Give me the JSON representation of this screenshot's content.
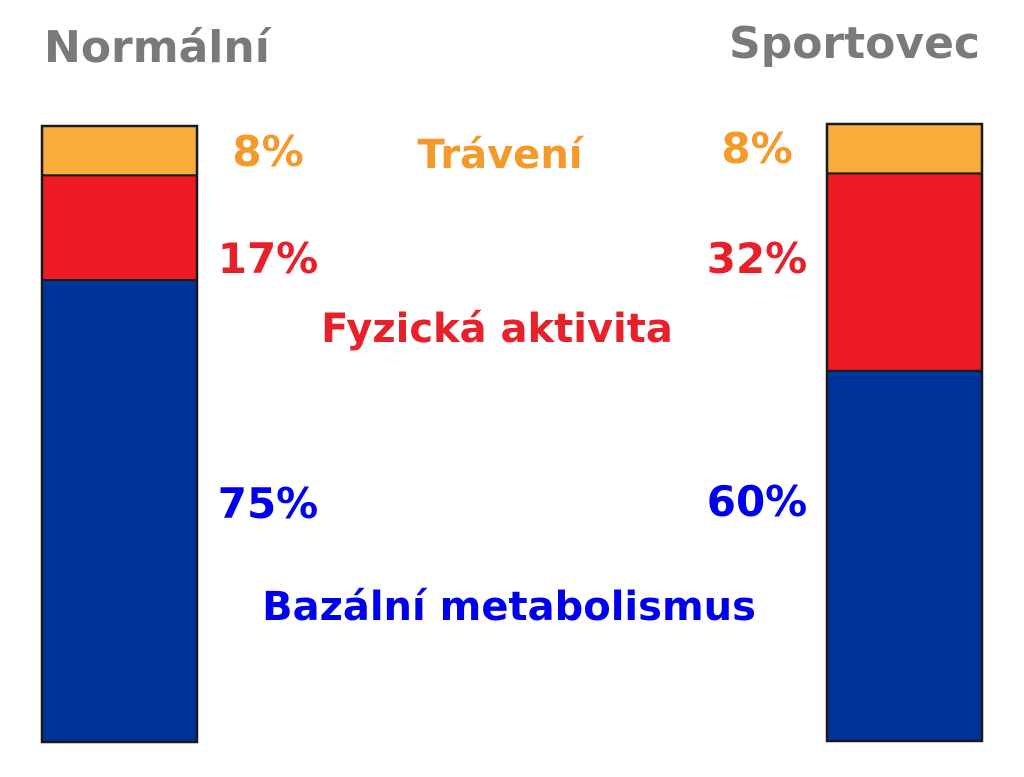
{
  "chart_data": {
    "type": "bar",
    "stacked": true,
    "categories": [
      "Normální",
      "Sportovec"
    ],
    "series": [
      {
        "name": "Bazální metabolismus",
        "values": [
          75,
          60
        ],
        "color": "#003399"
      },
      {
        "name": "Fyzická aktivita",
        "values": [
          17,
          32
        ],
        "color": "#ed1c24"
      },
      {
        "name": "Trávení",
        "values": [
          8,
          8
        ],
        "color": "#f7ac3c"
      }
    ],
    "value_labels": [
      [
        "75%",
        "60%"
      ],
      [
        "17%",
        "32%"
      ],
      [
        "8%",
        "8%"
      ]
    ],
    "label_colors": {
      "Bazální metabolismus": "#0000ee",
      "Fyzická aktivita": "#e8202a",
      "Trávení": "#f39a2b"
    },
    "title_color": "#7a7a7a",
    "ylim": [
      0,
      100
    ]
  }
}
